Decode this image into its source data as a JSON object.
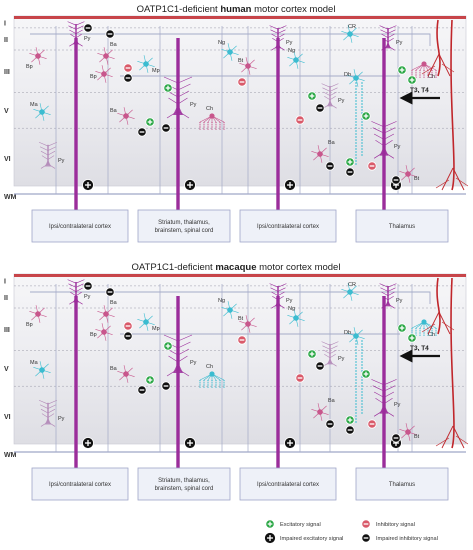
{
  "panels": [
    {
      "title_prefix": "OATP1C1-deficient ",
      "title_species": "human",
      "title_suffix": " motor cortex model",
      "layers": [
        "I",
        "II",
        "III",
        "V",
        "VI"
      ],
      "wm_label": "WM",
      "hormone_label": "T3, T4",
      "cell_labels": {
        "py": "Py",
        "bp": "Bp",
        "ba": "Ba",
        "mp": "Mp",
        "ng": "Ng",
        "bt": "Bt",
        "cr": "CR",
        "db": "Db",
        "ch": "Ch",
        "ma": "Ma"
      },
      "targets": [
        "Ipsi/contralateral cortex",
        "Striatum, thalamus,\nbrainstem, spinal cord",
        "Ipsi/contralateral cortex",
        "Thalamus"
      ]
    },
    {
      "title_prefix": "OATP1C1-deficient ",
      "title_species": "macaque",
      "title_suffix": " motor cortex model",
      "layers": [
        "I",
        "II",
        "III",
        "V",
        "VI"
      ],
      "wm_label": "WM",
      "hormone_label": "T3, T4",
      "cell_labels": {
        "py": "Py",
        "bp": "Bp",
        "ba": "Ba",
        "mp": "Mp",
        "ng": "Ng",
        "bt": "Bt",
        "cr": "CR",
        "db": "Db",
        "ch": "Ch",
        "ma": "Ma"
      },
      "targets": [
        "Ipsi/contralateral cortex",
        "Striatum, thalamus,\nbrainstem, spinal cord",
        "Ipsi/contralateral cortex",
        "Thalamus"
      ]
    }
  ],
  "legend": {
    "excitatory": "Excitatory signal",
    "impaired_excitatory": "Impaired excitatory signal",
    "inhibitory": "Inhibitory signal",
    "impaired_inhibitory": "Impaired inhibitory signal"
  },
  "colors": {
    "pyramidal": "#9b2d9b",
    "interneuron": "#c8568c",
    "chandelier": "#3bbcd0",
    "vessel": "#c0262b",
    "excitatory": "#2aa745",
    "inhibitory": "#d95a6a",
    "blocked": "#111111"
  }
}
